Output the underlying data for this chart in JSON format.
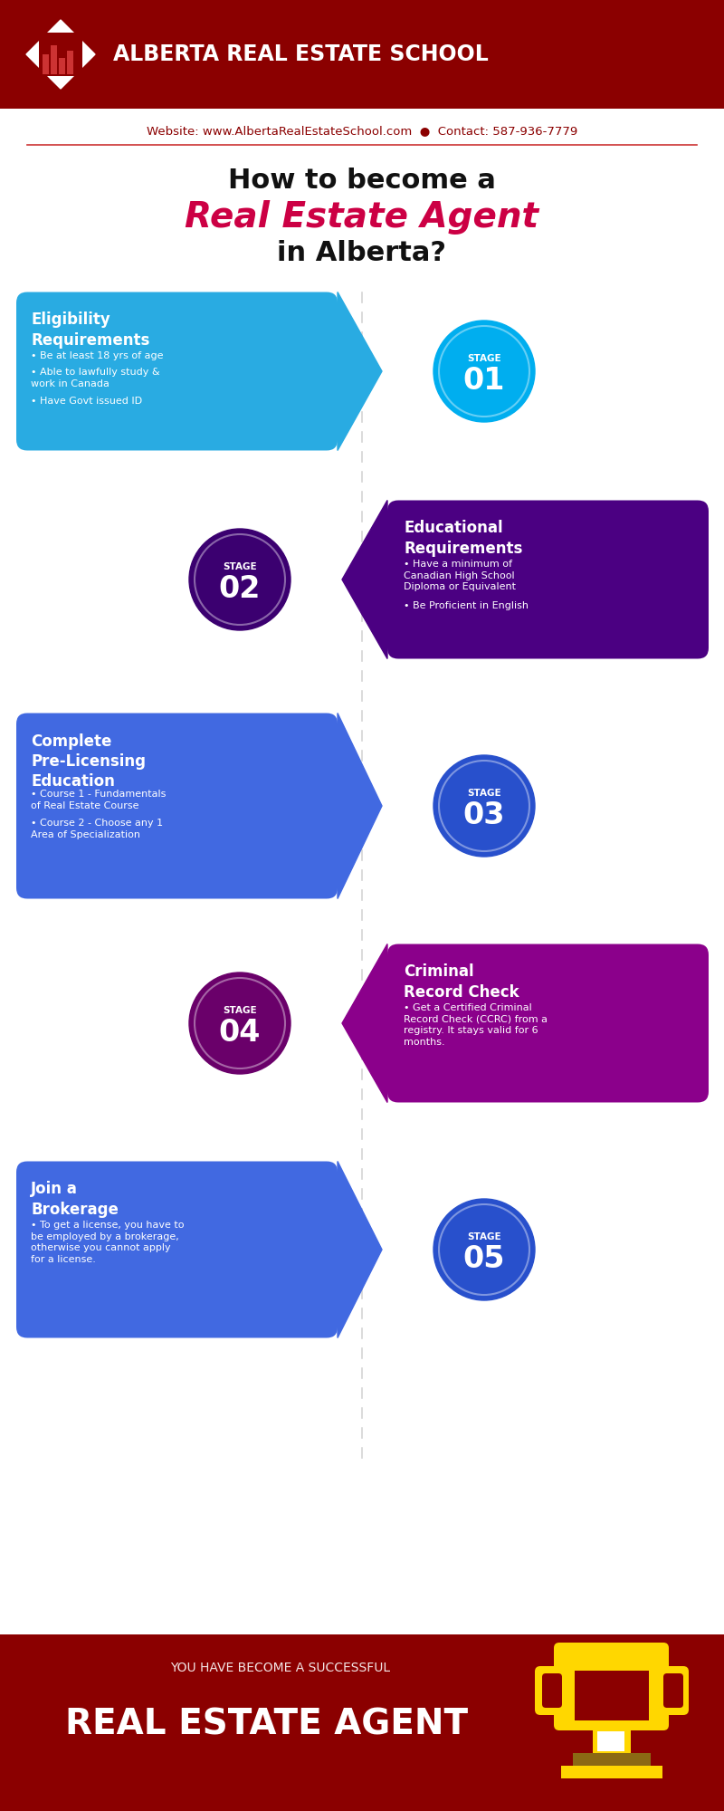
{
  "header_bg": "#8B0000",
  "header_text": "ALBERTA REAL ESTATE SCHOOL",
  "website_text": "Website: www.AlbertaRealEstateSchool.com  ●  Contact: 587-936-7779",
  "title_line1": "How to become a",
  "title_line2": "Real Estate Agent",
  "title_line3": "in Alberta?",
  "footer_bg": "#8B0000",
  "footer_small": "YOU HAVE BECOME A SUCCESSFUL",
  "footer_big": "REAL ESTATE AGENT",
  "bg_color": "#ffffff",
  "stages": [
    {
      "number": "01",
      "side": "left",
      "title": "Eligibility\nRequirements",
      "box_color": "#29ABE2",
      "circle_color": "#00AEEF",
      "bullet_points": [
        "Be at least 18 yrs of age",
        "Able to lawfully study &\nwork in Canada",
        "Have Govt issued ID"
      ]
    },
    {
      "number": "02",
      "side": "right",
      "title": "Educational\nRequirements",
      "box_color": "#4B0082",
      "circle_color": "#3B0070",
      "bullet_points": [
        "Have a minimum of\nCanadian High School\nDiploma or Equivalent",
        "Be Proficient in English"
      ]
    },
    {
      "number": "03",
      "side": "left",
      "title": "Complete\nPre-Licensing\nEducation",
      "box_color": "#4169E1",
      "circle_color": "#2850CC",
      "bullet_points": [
        "Course 1 - Fundamentals\nof Real Estate Course",
        "Course 2 - Choose any 1\nArea of Specialization"
      ]
    },
    {
      "number": "04",
      "side": "right",
      "title": "Criminal\nRecord Check",
      "box_color": "#8B008B",
      "circle_color": "#6A006A",
      "bullet_points": [
        "Get a Certified Criminal\nRecord Check (CCRC) from a\nregistry. It stays valid for 6\nmonths."
      ]
    },
    {
      "number": "05",
      "side": "left",
      "title": "Join a\nBrokerage",
      "box_color": "#4169E1",
      "circle_color": "#2850CC",
      "bullet_points": [
        "To get a license, you have to\nbe employed by a brokerage,\notherwise you cannot apply\nfor a license."
      ]
    }
  ]
}
